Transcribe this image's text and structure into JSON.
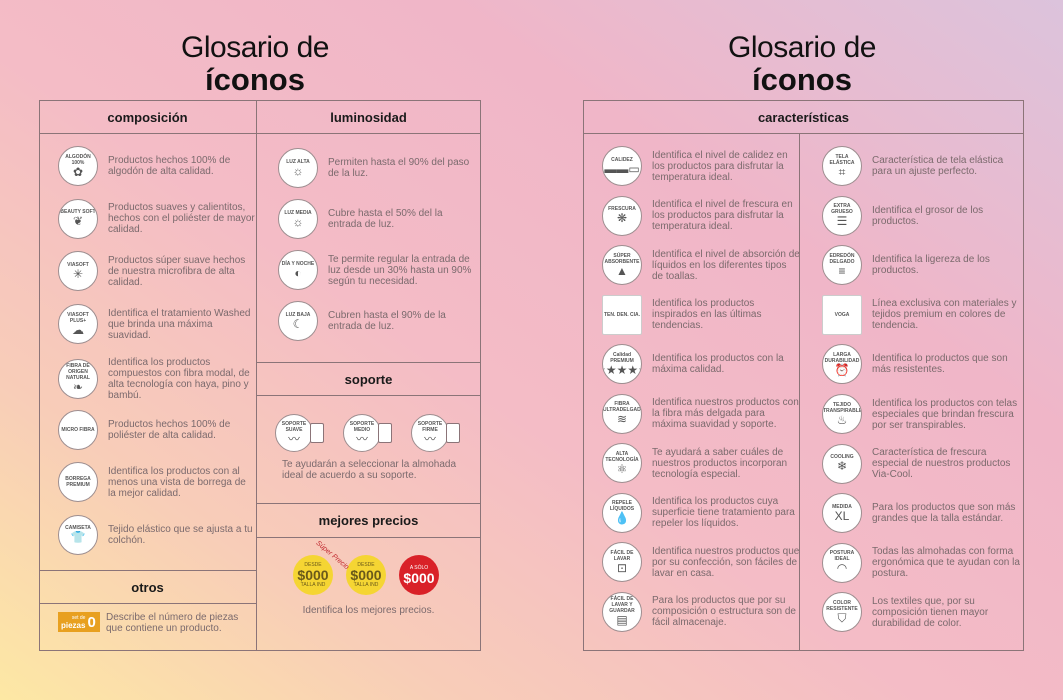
{
  "left": {
    "title_line1": "Glosario de",
    "title_line2": "íconos",
    "composicion": {
      "heading": "composición",
      "items": [
        {
          "icon": "cotton-icon",
          "icon_label": "ALGODÓN 100%",
          "glyph": "✿",
          "text": "Productos hechos 100% de algodón de alta calidad."
        },
        {
          "icon": "feather-icon",
          "icon_label": "BEAUTY SOFT",
          "glyph": "❦",
          "text": "Productos suaves y calientitos, hechos con el poliéster de mayor calidad."
        },
        {
          "icon": "viasoft-icon",
          "icon_label": "VIASOFT",
          "glyph": "✳",
          "text": "Productos súper suave hechos de nuestra microfibra de alta calidad."
        },
        {
          "icon": "viasoft-plus-icon",
          "icon_label": "VIASOFT PLUS+",
          "glyph": "☁",
          "text": "Identifica el tratamiento Washed que brinda una máxima suavidad."
        },
        {
          "icon": "leaf-icon",
          "icon_label": "FIBRA DE ORIGEN NATURAL",
          "glyph": "❧",
          "text": "Identifica los productos compuestos con fibra modal, de alta tecnología con haya, pino y bambú."
        },
        {
          "icon": "microfibra-icon",
          "icon_label": "MICRO FIBRA",
          "glyph": "",
          "text": "Productos hechos 100% de poliéster de alta calidad."
        },
        {
          "icon": "borrega-icon",
          "icon_label": "BORREGA PREMIUM",
          "glyph": "",
          "text": "Identifica los productos con al menos una vista de borrega de la mejor calidad."
        },
        {
          "icon": "tshirt-icon",
          "icon_label": "CAMISETA",
          "glyph": "👕",
          "text": "Tejido elástico que se ajusta a tu colchón."
        }
      ]
    },
    "otros": {
      "heading": "otros",
      "badge_small": "set de",
      "badge_big": "piezas",
      "badge_num": "0",
      "badge_color": "#e8a020",
      "text": "Describe el número de piezas que contiene un producto."
    },
    "luminosidad": {
      "heading": "luminosidad",
      "items": [
        {
          "icon": "sun-high-icon",
          "icon_label": "LUZ ALTA",
          "glyph": "☼",
          "text": "Permiten hasta el 90% del paso de la luz."
        },
        {
          "icon": "sun-medium-icon",
          "icon_label": "LUZ MEDIA",
          "glyph": "☼",
          "text": "Cubre hasta el 50% del la entrada de luz."
        },
        {
          "icon": "day-night-icon",
          "icon_label": "DÍA Y NOCHE",
          "glyph": "◐",
          "text": "Te permite regular la entrada de luz desde un 30% hasta un 90% según tu necesidad."
        },
        {
          "icon": "moon-icon",
          "icon_label": "LUZ BAJA",
          "glyph": "☾",
          "text": "Cubren hasta el 90% de la entrada de luz."
        }
      ]
    },
    "soporte": {
      "heading": "soporte",
      "items": [
        {
          "icon": "pillow-soft-icon",
          "icon_label": "SOPORTE SUAVE"
        },
        {
          "icon": "pillow-medium-icon",
          "icon_label": "SOPORTE MEDIO"
        },
        {
          "icon": "pillow-firm-icon",
          "icon_label": "SOPORTE FIRME"
        }
      ],
      "text": "Te ayudarán a seleccionar la almohada ideal de acuerdo a su soporte."
    },
    "precios": {
      "heading": "mejores precios",
      "super_label": "Súper Precio",
      "badges": [
        {
          "top": "DESDE",
          "value": "$000",
          "bottom": "TALLA IND",
          "color": "#f5d533"
        },
        {
          "top": "DESDE",
          "value": "$000",
          "bottom": "TALLA IND",
          "color": "#f5d533"
        },
        {
          "top": "A SÓLO",
          "value": "$000",
          "bottom": "",
          "color": "#d92128"
        }
      ],
      "text": "Identifica los mejores precios."
    }
  },
  "right": {
    "title_line1": "Glosario de",
    "title_line2": "íconos",
    "heading": "características",
    "col1": [
      {
        "icon": "warmth-icon",
        "icon_label": "CALIDEZ",
        "glyph": "▬▬▭",
        "text": "Identifica el nivel de calidez en los productos para disfrutar la temperatura ideal."
      },
      {
        "icon": "freshness-icon",
        "icon_label": "FRESCURA",
        "glyph": "❋",
        "text": "Identifica el nivel de frescura en los productos para disfrutar la temperatura ideal."
      },
      {
        "icon": "absorbent-icon",
        "icon_label": "SÚPER ABSORBENTE",
        "glyph": "▲",
        "text": "Identifica el nivel de absorción de líquidos en los diferentes tipos de toallas."
      },
      {
        "icon": "trend-icon",
        "icon_label": "TEN. DEN. CIA.",
        "glyph": "",
        "square": true,
        "text": "Identifica los productos inspirados en las últimas tendencias."
      },
      {
        "icon": "premium-icon",
        "icon_label": "Calidad PREMIUM",
        "glyph": "★★★★★",
        "text": "Identifica los productos con la máxima calidad."
      },
      {
        "icon": "ultrathin-fiber-icon",
        "icon_label": "FIBRA ULTRADELGADA",
        "glyph": "≋",
        "text": "Identifica nuestros productos con la fibra más delgada para máxima suavidad y soporte."
      },
      {
        "icon": "atom-icon",
        "icon_label": "ALTA TECNOLOGÍA",
        "glyph": "⚛",
        "text": "Te ayudará a saber cuáles de nuestros productos incorporan tecnología especial."
      },
      {
        "icon": "drop-icon",
        "icon_label": "REPELE LÍQUIDOS",
        "glyph": "💧",
        "text": "Identifica los productos cuya superficie tiene tratamiento para repeler los líquidos."
      },
      {
        "icon": "washer-icon",
        "icon_label": "FÁCIL DE LAVAR",
        "glyph": "⊡",
        "text": "Identifica nuestros productos que por su confección, son fáciles de lavar en casa."
      },
      {
        "icon": "folded-stack-icon",
        "icon_label": "FÁCIL DE LAVAR Y GUARDAR",
        "glyph": "▤",
        "text": "Para los productos que por su composición o estructura son de fácil almacenaje."
      }
    ],
    "col2": [
      {
        "icon": "elastic-icon",
        "icon_label": "TELA ELÁSTICA",
        "glyph": "⌗",
        "text": "Característica de tela elástica para un ajuste perfecto."
      },
      {
        "icon": "thick-icon",
        "icon_label": "EXTRA GRUESO",
        "glyph": "☰",
        "text": "Identifica el grosor de los productos."
      },
      {
        "icon": "thin-duvet-icon",
        "icon_label": "EDREDÓN DELGADO",
        "glyph": "≡",
        "text": "Identifica la ligereza de los productos."
      },
      {
        "icon": "voga-logo-icon",
        "icon_label": "VOGA",
        "glyph": "",
        "square": true,
        "text": "Línea exclusiva con materiales y tejidos premium en colores de tendencia."
      },
      {
        "icon": "alarm-clock-icon",
        "icon_label": "LARGA DURABILIDAD",
        "glyph": "⏰",
        "text": "Identifica lo productos que son más resistentes."
      },
      {
        "icon": "breathable-icon",
        "icon_label": "TEJIDO TRANSPIRABLE",
        "glyph": "♨",
        "text": "Identifica los productos con telas especiales que brindan frescura por ser transpirables."
      },
      {
        "icon": "snowflake-icon",
        "icon_label": "COOLING",
        "glyph": "❄",
        "text": "Característica de frescura especial de nuestros productos Via-Cool."
      },
      {
        "icon": "xl-icon",
        "icon_label": "MEDIDA",
        "glyph": "XL",
        "text": "Para los productos que son más grandes que la talla estándar."
      },
      {
        "icon": "posture-icon",
        "icon_label": "POSTURA IDEAL",
        "glyph": "◠",
        "text": "Todas las almohadas con forma ergonómica que te ayudan con la postura."
      },
      {
        "icon": "color-shield-icon",
        "icon_label": "COLOR RESISTENTE",
        "glyph": "⛉",
        "text": "Los textiles que, por su composición tienen mayor durabilidad de color."
      }
    ]
  }
}
